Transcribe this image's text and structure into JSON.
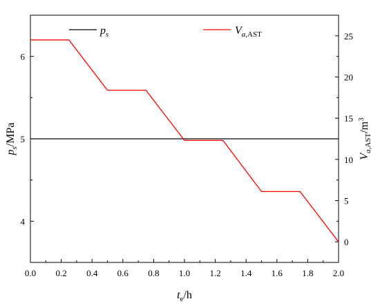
{
  "chart_data": {
    "type": "line",
    "x_axis": {
      "label_main": "t",
      "label_sub": "e",
      "label_unit": "/h",
      "range": [
        0.0,
        2.0
      ],
      "ticks": [
        0.0,
        0.2,
        0.4,
        0.6,
        0.8,
        1.0,
        1.2,
        1.4,
        1.6,
        1.8,
        2.0
      ],
      "tick_labels": [
        "0.0",
        "0.2",
        "0.4",
        "0.6",
        "0.8",
        "1.0",
        "1.2",
        "1.4",
        "1.6",
        "1.8",
        "2.0"
      ]
    },
    "y_left_axis": {
      "label_main": "p",
      "label_sub": "s",
      "label_unit": "/MPa",
      "range": [
        3.5,
        6.5
      ],
      "ticks": [
        4,
        5,
        6
      ],
      "tick_labels": [
        "4",
        "5",
        "6"
      ]
    },
    "y_right_axis": {
      "label_main": "V",
      "label_sub_italic": "a,",
      "label_sub": "AST",
      "label_unit": "/m",
      "label_sup": "3",
      "range": [
        -2.5,
        27.5
      ],
      "ticks": [
        0,
        5,
        10,
        15,
        20,
        25
      ],
      "tick_labels": [
        "0",
        "5",
        "10",
        "15",
        "20",
        "25"
      ]
    },
    "series": [
      {
        "name_main": "p",
        "name_sub": "s",
        "axis": "left",
        "color": "#000000",
        "x": [
          0.0,
          2.0
        ],
        "y": [
          5.0,
          5.0
        ]
      },
      {
        "name_main": "V",
        "name_sub_italic": "a,",
        "name_sub": "AST",
        "axis": "right",
        "color": "#ff0000",
        "x": [
          0.0,
          0.25,
          0.5,
          0.75,
          1.0,
          1.25,
          1.5,
          1.75,
          2.0
        ],
        "y": [
          24.5,
          24.5,
          18.4,
          18.4,
          12.3,
          12.3,
          6.1,
          6.1,
          0.0
        ]
      }
    ],
    "legend_position": "top",
    "grid": false
  }
}
